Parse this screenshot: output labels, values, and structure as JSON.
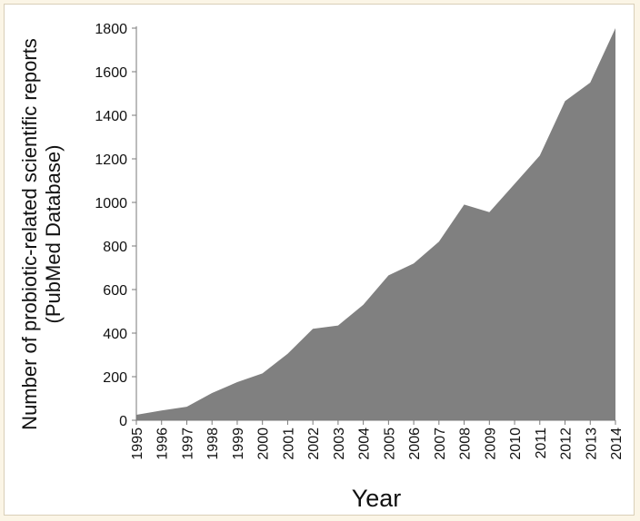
{
  "chart_data": {
    "type": "area",
    "title": "",
    "xlabel": "Year",
    "ylabel_lines": [
      "Number of probiotic-related scientific reports",
      "(PubMed Database)"
    ],
    "x": [
      "1995",
      "1996",
      "1997",
      "1998",
      "1999",
      "2000",
      "2001",
      "2002",
      "2003",
      "2004",
      "2005",
      "2006",
      "2007",
      "2008",
      "2009",
      "2010",
      "2011",
      "2012",
      "2013",
      "2014"
    ],
    "values": [
      25,
      45,
      62,
      125,
      175,
      215,
      305,
      420,
      435,
      530,
      665,
      720,
      820,
      990,
      955,
      1085,
      1215,
      1465,
      1550,
      1800
    ],
    "ylim": [
      0,
      1800
    ],
    "yticks": [
      0,
      200,
      400,
      600,
      800,
      1000,
      1200,
      1400,
      1600,
      1800
    ],
    "fill_color": "#808080",
    "grid": false,
    "legend": "none"
  }
}
